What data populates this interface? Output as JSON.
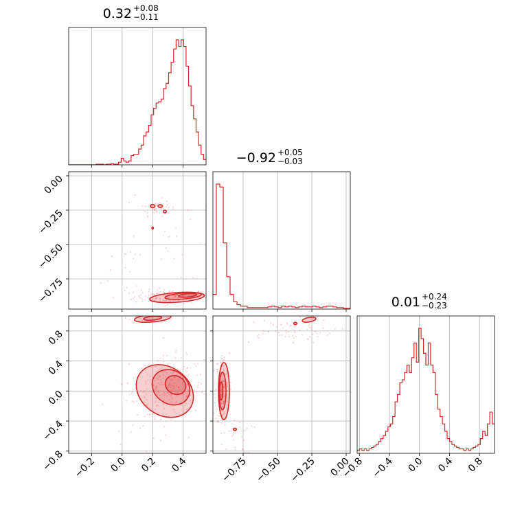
{
  "chart_data": {
    "type": "corner",
    "color": "#d62728",
    "grid": true,
    "parameters": [
      {
        "range": [
          -0.35,
          0.55
        ],
        "ticks": [
          -0.2,
          0.0,
          0.2,
          0.4
        ],
        "tick_labels": [
          "−0.2",
          "0.0",
          "0.2",
          "0.4"
        ]
      },
      {
        "range": [
          -0.97,
          0.03
        ],
        "ticks": [
          -0.75,
          -0.5,
          -0.25,
          0.0
        ],
        "tick_labels": [
          "−0.75",
          "−0.50",
          "−0.25",
          "0.00"
        ]
      },
      {
        "range": [
          -0.83,
          1.0
        ],
        "ticks": [
          -0.8,
          -0.4,
          0.0,
          0.4,
          0.8
        ],
        "tick_labels": [
          "−0.8",
          "−0.4",
          "0.0",
          "0.4",
          "0.8"
        ]
      }
    ],
    "y_tick_labels": {
      "row1": {
        "ticks": [
          0.0,
          -0.25,
          -0.5,
          -0.75
        ],
        "labels": [
          "0.00",
          "−0.25",
          "−0.50",
          "−0.75"
        ]
      },
      "row2": {
        "ticks": [
          0.8,
          0.4,
          0.0,
          -0.4,
          -0.8
        ],
        "labels": [
          "0.8",
          "0.4",
          "0.0",
          "−0.4",
          "−0.8"
        ]
      }
    },
    "titles": [
      {
        "value": "0.32",
        "plus": "+0.08",
        "minus": "−0.11"
      },
      {
        "value": "−0.92",
        "plus": "+0.05",
        "minus": "−0.03"
      },
      {
        "value": "0.01",
        "plus": "+0.24",
        "minus": "−0.23"
      }
    ],
    "histograms": [
      {
        "bins": [
          -0.35,
          0.55
        ],
        "counts": [
          0,
          0,
          0,
          0,
          0,
          0,
          0,
          0,
          0,
          0,
          0,
          0.005,
          0.005,
          0.005,
          0,
          0.005,
          0.005,
          0.01,
          0.005,
          0.005,
          0.02,
          0.05,
          0.03,
          0.02,
          0.03,
          0.07,
          0.08,
          0.08,
          0.12,
          0.15,
          0.22,
          0.25,
          0.3,
          0.38,
          0.43,
          0.47,
          0.48,
          0.5,
          0.58,
          0.62,
          0.7,
          0.78,
          0.88,
          0.95,
          0.9,
          0.95,
          0.9,
          0.75,
          0.6,
          0.45,
          0.35,
          0.25,
          0.15,
          0.08,
          0.04
        ]
      },
      {
        "bins": [
          -0.97,
          0.03
        ],
        "counts": [
          0.1,
          0.85,
          0.83,
          0.45,
          0.22,
          0.1,
          0.05,
          0.03,
          0.02,
          0.02,
          0.01,
          0.01,
          0.01,
          0.01,
          0.01,
          0.01,
          0.015,
          0.02,
          0.015,
          0.01,
          0.02,
          0.015,
          0.02,
          0.015,
          0.01,
          0.015,
          0.02,
          0.015,
          0.015,
          0.02,
          0.015,
          0.01,
          0.015,
          0.02,
          0.02,
          0.015,
          0.01,
          0.01,
          0.005,
          0.005
        ]
      },
      {
        "bins": [
          -0.83,
          1.0
        ],
        "counts": [
          0.02,
          0.03,
          0.02,
          0.03,
          0.02,
          0.03,
          0.04,
          0.05,
          0.06,
          0.08,
          0.1,
          0.12,
          0.15,
          0.18,
          0.2,
          0.25,
          0.35,
          0.4,
          0.48,
          0.5,
          0.55,
          0.6,
          0.55,
          0.65,
          0.75,
          0.62,
          0.85,
          0.78,
          0.68,
          0.6,
          0.75,
          0.6,
          0.55,
          0.4,
          0.3,
          0.25,
          0.2,
          0.15,
          0.1,
          0.08,
          0.06,
          0.05,
          0.04,
          0.03,
          0.03,
          0.02,
          0.03,
          0.02,
          0.03,
          0.04,
          0.05,
          0.06,
          0.1,
          0.15,
          0.12,
          0.2,
          0.28,
          0.2
        ]
      }
    ],
    "scatter": {
      "p1_vs_p0": [
        {
          "x": 0.32,
          "y": -0.88,
          "n": 160,
          "sx": 0.12,
          "sy": 0.025
        },
        {
          "x": 0.22,
          "y": -0.23,
          "n": 35,
          "sx": 0.05,
          "sy": 0.03
        },
        {
          "x": 0.3,
          "y": -0.4,
          "n": 25,
          "sx": 0.12,
          "sy": 0.22
        },
        {
          "x": 0.05,
          "y": -0.7,
          "n": 20,
          "sx": 0.15,
          "sy": 0.15
        }
      ],
      "p2_vs_p0": [
        {
          "x": 0.32,
          "y": 0.05,
          "n": 220,
          "sx": 0.11,
          "sy": 0.2
        },
        {
          "x": 0.2,
          "y": 0.98,
          "n": 40,
          "sx": 0.08,
          "sy": 0.03
        },
        {
          "x": 0.15,
          "y": -0.2,
          "n": 40,
          "sx": 0.12,
          "sy": 0.25
        }
      ],
      "p2_vs_p1": [
        {
          "x": -0.9,
          "y": 0.0,
          "n": 180,
          "sx": 0.025,
          "sy": 0.25
        },
        {
          "x": -0.45,
          "y": 0.8,
          "n": 60,
          "sx": 0.18,
          "sy": 0.08
        },
        {
          "x": -0.8,
          "y": -0.6,
          "n": 25,
          "sx": 0.06,
          "sy": 0.12
        }
      ]
    },
    "contours": {
      "p1_vs_p0": [
        {
          "cx": 0.36,
          "cy": -0.885,
          "rx": 0.18,
          "ry": 0.035,
          "rot": -4
        },
        {
          "cx": 0.4,
          "cy": -0.875,
          "rx": 0.12,
          "ry": 0.022,
          "rot": -5
        },
        {
          "cx": 0.43,
          "cy": -0.87,
          "rx": 0.06,
          "ry": 0.012,
          "rot": -5
        },
        {
          "cx": 0.2,
          "cy": -0.22,
          "rx": 0.015,
          "ry": 0.012,
          "rot": 0
        },
        {
          "cx": 0.25,
          "cy": -0.22,
          "rx": 0.015,
          "ry": 0.01,
          "rot": 0
        },
        {
          "cx": 0.28,
          "cy": -0.26,
          "rx": 0.01,
          "ry": 0.01,
          "rot": 0
        },
        {
          "cx": 0.2,
          "cy": -0.38,
          "rx": 0.005,
          "ry": 0.008,
          "rot": 0
        }
      ],
      "p2_vs_p0": [
        {
          "cx": 0.28,
          "cy": 0.0,
          "rx": 0.2,
          "ry": 0.32,
          "rot": 35
        },
        {
          "cx": 0.32,
          "cy": 0.05,
          "rx": 0.13,
          "ry": 0.22,
          "rot": 35
        },
        {
          "cx": 0.35,
          "cy": 0.08,
          "rx": 0.07,
          "ry": 0.12,
          "rot": 30
        },
        {
          "cx": 0.2,
          "cy": 0.97,
          "rx": 0.12,
          "ry": 0.05,
          "rot": -5
        },
        {
          "cx": 0.2,
          "cy": 0.97,
          "rx": 0.06,
          "ry": 0.025,
          "rot": -5
        }
      ],
      "p2_vs_p1": [
        {
          "cx": -0.89,
          "cy": 0.0,
          "rx": 0.04,
          "ry": 0.38,
          "rot": 0
        },
        {
          "cx": -0.9,
          "cy": 0.0,
          "rx": 0.025,
          "ry": 0.25,
          "rot": 0
        },
        {
          "cx": -0.91,
          "cy": 0.0,
          "rx": 0.012,
          "ry": 0.12,
          "rot": 0
        },
        {
          "cx": -0.27,
          "cy": 0.95,
          "rx": 0.05,
          "ry": 0.03,
          "rot": -10
        },
        {
          "cx": -0.37,
          "cy": 0.9,
          "rx": 0.012,
          "ry": 0.015,
          "rot": 0
        },
        {
          "cx": -0.81,
          "cy": -0.51,
          "rx": 0.012,
          "ry": 0.015,
          "rot": 0
        }
      ]
    }
  }
}
